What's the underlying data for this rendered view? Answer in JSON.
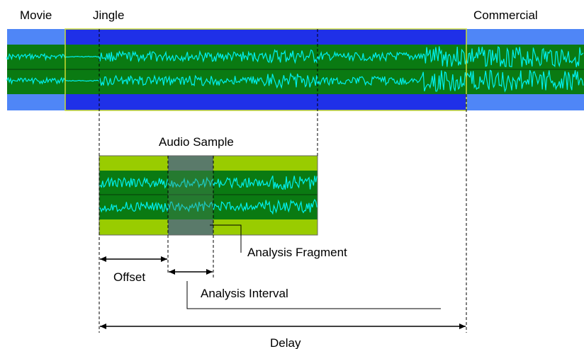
{
  "labels": {
    "movie": "Movie",
    "jingle": "Jingle",
    "commercial": "Commercial",
    "audio_sample": "Audio Sample",
    "analysis_fragment": "Analysis Fragment",
    "offset": "Offset",
    "analysis_interval": "Analysis  Interval",
    "delay": "Delay"
  },
  "colors": {
    "track_blue_light": "#4f86f7",
    "track_blue_dark": "#1f30e8",
    "wave_bg": "#0a7a12",
    "wave_line": "#00f0f0",
    "sample_frame": "#99cc00",
    "fragment": "#5a7a6a",
    "border": "#ccdd33"
  }
}
